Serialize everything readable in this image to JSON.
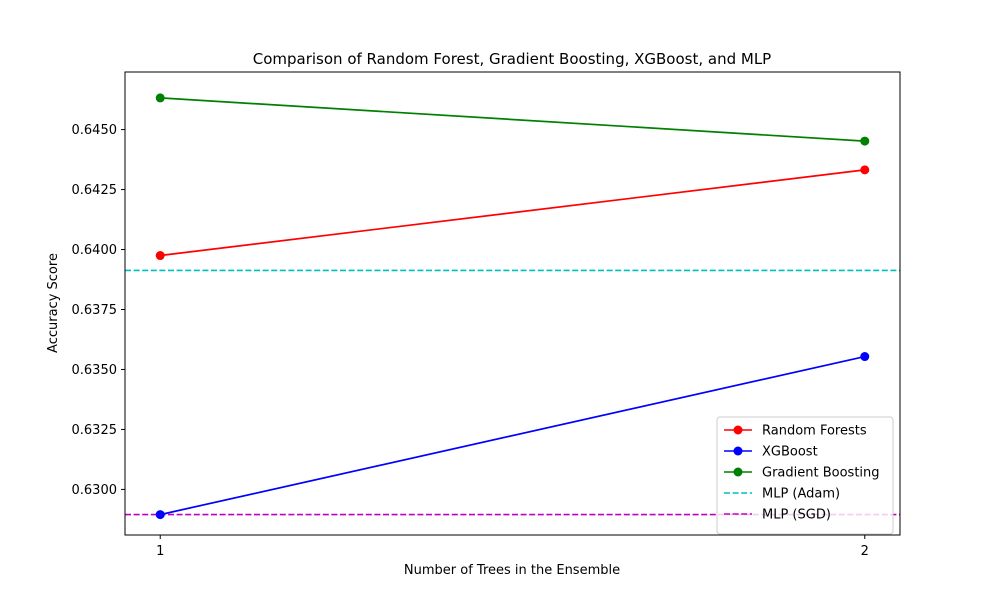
{
  "chart_data": {
    "type": "line",
    "title": "Comparison of Random Forest, Gradient Boosting, XGBoost, and MLP",
    "xlabel": "Number of Trees in the Ensemble",
    "ylabel": "Accuracy Score",
    "x": [
      1,
      2
    ],
    "xticks": [
      "1",
      "2"
    ],
    "xlim": [
      0.95,
      2.05
    ],
    "ylim": [
      0.6281,
      0.6474
    ],
    "yticks": [
      "0.6300",
      "0.6325",
      "0.6350",
      "0.6375",
      "0.6400",
      "0.6425",
      "0.6450"
    ],
    "grid": false,
    "legend_position": "lower right",
    "series": [
      {
        "name": "Random Forests",
        "values": [
          0.63975,
          0.64332
        ],
        "color": "#ff0000",
        "style": "solid",
        "marker": "circle"
      },
      {
        "name": "XGBoost",
        "values": [
          0.62895,
          0.63554
        ],
        "color": "#0000ff",
        "style": "solid",
        "marker": "circle"
      },
      {
        "name": "Gradient Boosting",
        "values": [
          0.64632,
          0.64452
        ],
        "color": "#008000",
        "style": "solid",
        "marker": "circle"
      }
    ],
    "hlines": [
      {
        "name": "MLP (Adam)",
        "value": 0.63913,
        "color": "#00bfbf",
        "style": "dashed"
      },
      {
        "name": "MLP (SGD)",
        "value": 0.62895,
        "color": "#bf00bf",
        "style": "dashed"
      }
    ]
  }
}
